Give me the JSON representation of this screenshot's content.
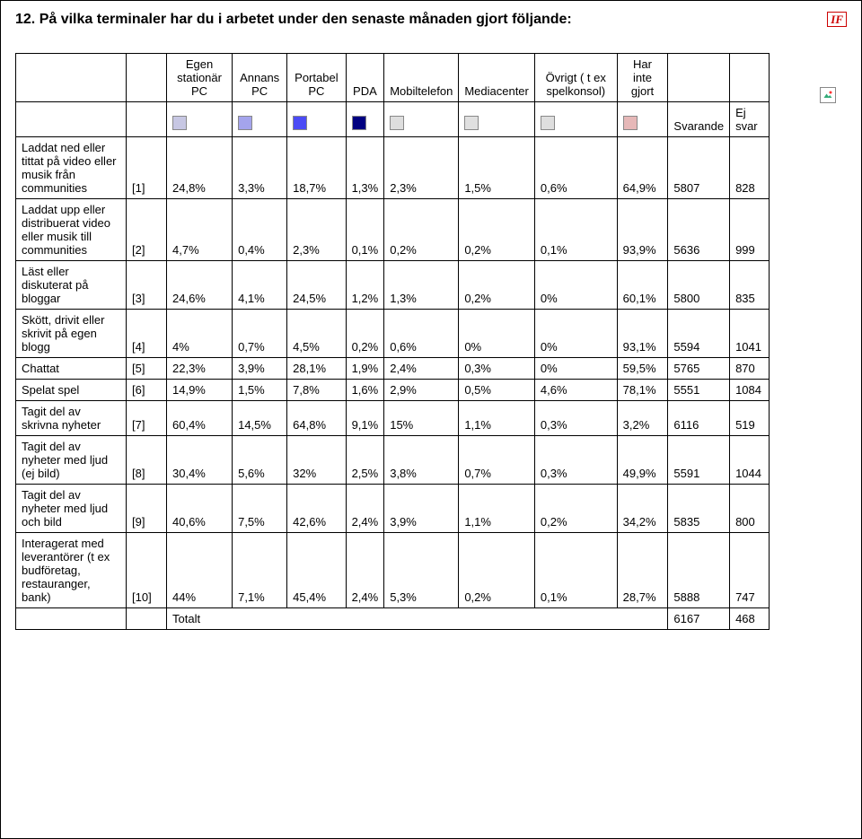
{
  "title": "12. På vilka terminaler har du i arbetet under den senaste månaden gjort följande:",
  "if_badge": "IF",
  "headers": {
    "c1": "Egen stationär PC",
    "c2": "Annans PC",
    "c3": "Portabel PC",
    "c4": "PDA",
    "c5": "Mobiltelefon",
    "c6": "Mediacenter",
    "c7": "Övrigt ( t ex spelkonsol)",
    "c8": "Har inte gjort",
    "c9": "Svarande",
    "c10": "Ej svar"
  },
  "swatch_colors": [
    "#c7c7e3",
    "#a4a4ec",
    "#4b4bf5",
    "#000080",
    "#dedede",
    "#e0e0e0",
    "#dedede",
    "#e6b8b8"
  ],
  "rows": [
    {
      "label": "Laddat ned eller tittat på video eller musik från communities",
      "idx": "[1]",
      "v": [
        "24,8%",
        "3,3%",
        "18,7%",
        "1,3%",
        "2,3%",
        "1,5%",
        "0,6%",
        "64,9%",
        "5807",
        "828"
      ]
    },
    {
      "label": "Laddat upp eller distribuerat video eller musik till communities",
      "idx": "[2]",
      "v": [
        "4,7%",
        "0,4%",
        "2,3%",
        "0,1%",
        "0,2%",
        "0,2%",
        "0,1%",
        "93,9%",
        "5636",
        "999"
      ]
    },
    {
      "label": "Läst eller diskuterat på bloggar",
      "idx": "[3]",
      "v": [
        "24,6%",
        "4,1%",
        "24,5%",
        "1,2%",
        "1,3%",
        "0,2%",
        "0%",
        "60,1%",
        "5800",
        "835"
      ]
    },
    {
      "label": "Skött, drivit eller skrivit på egen blogg",
      "idx": "[4]",
      "v": [
        "4%",
        "0,7%",
        "4,5%",
        "0,2%",
        "0,6%",
        "0%",
        "0%",
        "93,1%",
        "5594",
        "1041"
      ]
    },
    {
      "label": "Chattat",
      "idx": "[5]",
      "v": [
        "22,3%",
        "3,9%",
        "28,1%",
        "1,9%",
        "2,4%",
        "0,3%",
        "0%",
        "59,5%",
        "5765",
        "870"
      ]
    },
    {
      "label": "Spelat spel",
      "idx": "[6]",
      "v": [
        "14,9%",
        "1,5%",
        "7,8%",
        "1,6%",
        "2,9%",
        "0,5%",
        "4,6%",
        "78,1%",
        "5551",
        "1084"
      ]
    },
    {
      "label": "Tagit del av skrivna nyheter",
      "idx": "[7]",
      "v": [
        "60,4%",
        "14,5%",
        "64,8%",
        "9,1%",
        "15%",
        "1,1%",
        "0,3%",
        "3,2%",
        "6116",
        "519"
      ]
    },
    {
      "label": "Tagit del av nyheter med ljud (ej bild)",
      "idx": "[8]",
      "v": [
        "30,4%",
        "5,6%",
        "32%",
        "2,5%",
        "3,8%",
        "0,7%",
        "0,3%",
        "49,9%",
        "5591",
        "1044"
      ]
    },
    {
      "label": "Tagit del av nyheter med ljud och bild",
      "idx": "[9]",
      "v": [
        "40,6%",
        "7,5%",
        "42,6%",
        "2,4%",
        "3,9%",
        "1,1%",
        "0,2%",
        "34,2%",
        "5835",
        "800"
      ]
    },
    {
      "label": "Interagerat med leverantörer (t ex budföretag, restauranger, bank)",
      "idx": "[10]",
      "v": [
        "44%",
        "7,1%",
        "45,4%",
        "2,4%",
        "5,3%",
        "0,2%",
        "0,1%",
        "28,7%",
        "5888",
        "747"
      ]
    }
  ],
  "total": {
    "label": "Totalt",
    "svarande": "6167",
    "ejsvar": "468"
  }
}
